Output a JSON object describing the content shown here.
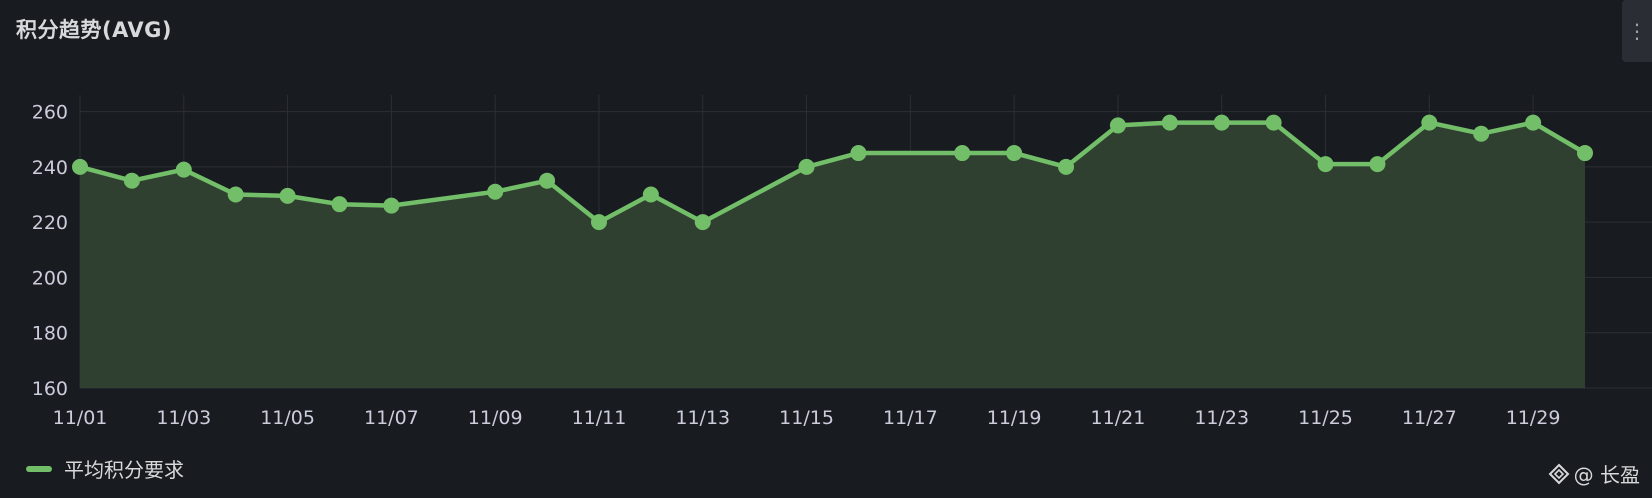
{
  "panel": {
    "title": "积分趋势(AVG)",
    "menu_icon": "ellipsis-vertical-icon"
  },
  "watermark": {
    "icon": "diamond-logo-icon",
    "text": "@ 长盈"
  },
  "colors": {
    "background": "#181b1f",
    "series": "#73bf69",
    "fill": "#2f4030",
    "grid": "#2c2f35",
    "text": "#ccccdc"
  },
  "chart_data": {
    "type": "area",
    "title": "积分趋势(AVG)",
    "x": [
      "11/01",
      "11/02",
      "11/03",
      "11/04",
      "11/05",
      "11/06",
      "11/07",
      "11/09",
      "11/10",
      "11/11",
      "11/12",
      "11/13",
      "11/15",
      "11/16",
      "11/18",
      "11/19",
      "11/20",
      "11/21",
      "11/22",
      "11/23",
      "11/24",
      "11/25",
      "11/26",
      "11/27",
      "11/28",
      "11/29",
      "11/30"
    ],
    "x_tick_labels": [
      "11/01",
      "11/03",
      "11/05",
      "11/07",
      "11/09",
      "11/11",
      "11/13",
      "11/15",
      "11/17",
      "11/19",
      "11/21",
      "11/23",
      "11/25",
      "11/27",
      "11/29"
    ],
    "y_ticks": [
      160,
      180,
      200,
      220,
      240,
      260
    ],
    "ylim": [
      160,
      266
    ],
    "xlim": [
      "11/01",
      "11/30"
    ],
    "grid": true,
    "legend_position": "bottom-left",
    "series": [
      {
        "name": "平均积分要求",
        "color": "#73bf69",
        "values": [
          240,
          235,
          239,
          230,
          229.5,
          226.5,
          226,
          231,
          235,
          220,
          230,
          220,
          240,
          245,
          245,
          245,
          240,
          255,
          256,
          256,
          256,
          241,
          241,
          256,
          252,
          256,
          245
        ]
      }
    ]
  }
}
